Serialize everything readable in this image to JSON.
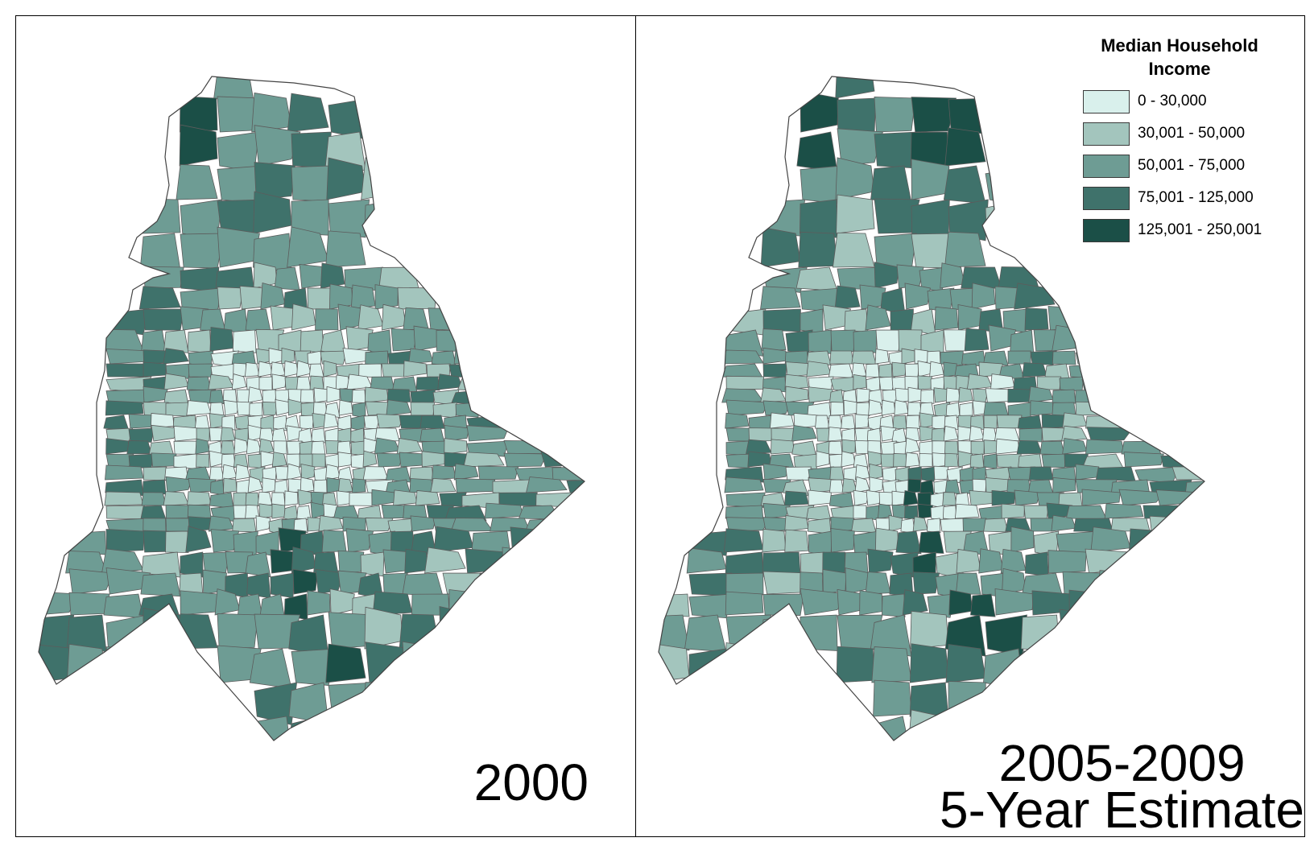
{
  "maps": {
    "left_label": "2000",
    "right_label_line1": "2005-2009",
    "right_label_line2": "5-Year Estimate"
  },
  "legend": {
    "title": "Median Household Income",
    "classes": [
      {
        "label": "0 - 30,000",
        "color": "#d9f0ec"
      },
      {
        "label": "30,001 - 50,000",
        "color": "#a3c5bd"
      },
      {
        "label": "50,001 - 75,000",
        "color": "#6e9c94"
      },
      {
        "label": "75,001 - 125,000",
        "color": "#3f726b"
      },
      {
        "label": "125,001 - 250,001",
        "color": "#1b4f47"
      }
    ]
  }
}
